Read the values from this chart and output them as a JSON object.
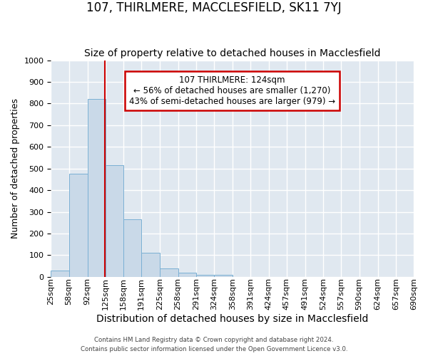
{
  "title": "107, THIRLMERE, MACCLESFIELD, SK11 7YJ",
  "subtitle": "Size of property relative to detached houses in Macclesfield",
  "xlabel": "Distribution of detached houses by size in Macclesfield",
  "ylabel": "Number of detached properties",
  "bar_edges": [
    25,
    58,
    92,
    125,
    158,
    191,
    225,
    258,
    291,
    324,
    358,
    391,
    424,
    457,
    491,
    524,
    557,
    590,
    624,
    657,
    690
  ],
  "bar_heights": [
    30,
    475,
    820,
    515,
    265,
    110,
    40,
    20,
    10,
    10,
    0,
    0,
    0,
    0,
    0,
    0,
    0,
    0,
    0,
    0
  ],
  "bar_color": "#c9d9e8",
  "bar_edge_color": "#7ab0d4",
  "bg_color": "#e0e8f0",
  "grid_color": "#ffffff",
  "vline_x": 124,
  "vline_color": "#cc0000",
  "annotation_text": "107 THIRLMERE: 124sqm\n← 56% of detached houses are smaller (1,270)\n43% of semi-detached houses are larger (979) →",
  "annotation_box_color": "#cc0000",
  "ylim": [
    0,
    1000
  ],
  "yticks": [
    0,
    100,
    200,
    300,
    400,
    500,
    600,
    700,
    800,
    900,
    1000
  ],
  "tick_labels": [
    "25sqm",
    "58sqm",
    "92sqm",
    "125sqm",
    "158sqm",
    "191sqm",
    "225sqm",
    "258sqm",
    "291sqm",
    "324sqm",
    "358sqm",
    "391sqm",
    "424sqm",
    "457sqm",
    "491sqm",
    "524sqm",
    "557sqm",
    "590sqm",
    "624sqm",
    "657sqm",
    "690sqm"
  ],
  "title_fontsize": 12,
  "subtitle_fontsize": 10,
  "xlabel_fontsize": 10,
  "ylabel_fontsize": 9,
  "tick_fontsize": 8,
  "footer_line1": "Contains HM Land Registry data © Crown copyright and database right 2024.",
  "footer_line2": "Contains public sector information licensed under the Open Government Licence v3.0."
}
